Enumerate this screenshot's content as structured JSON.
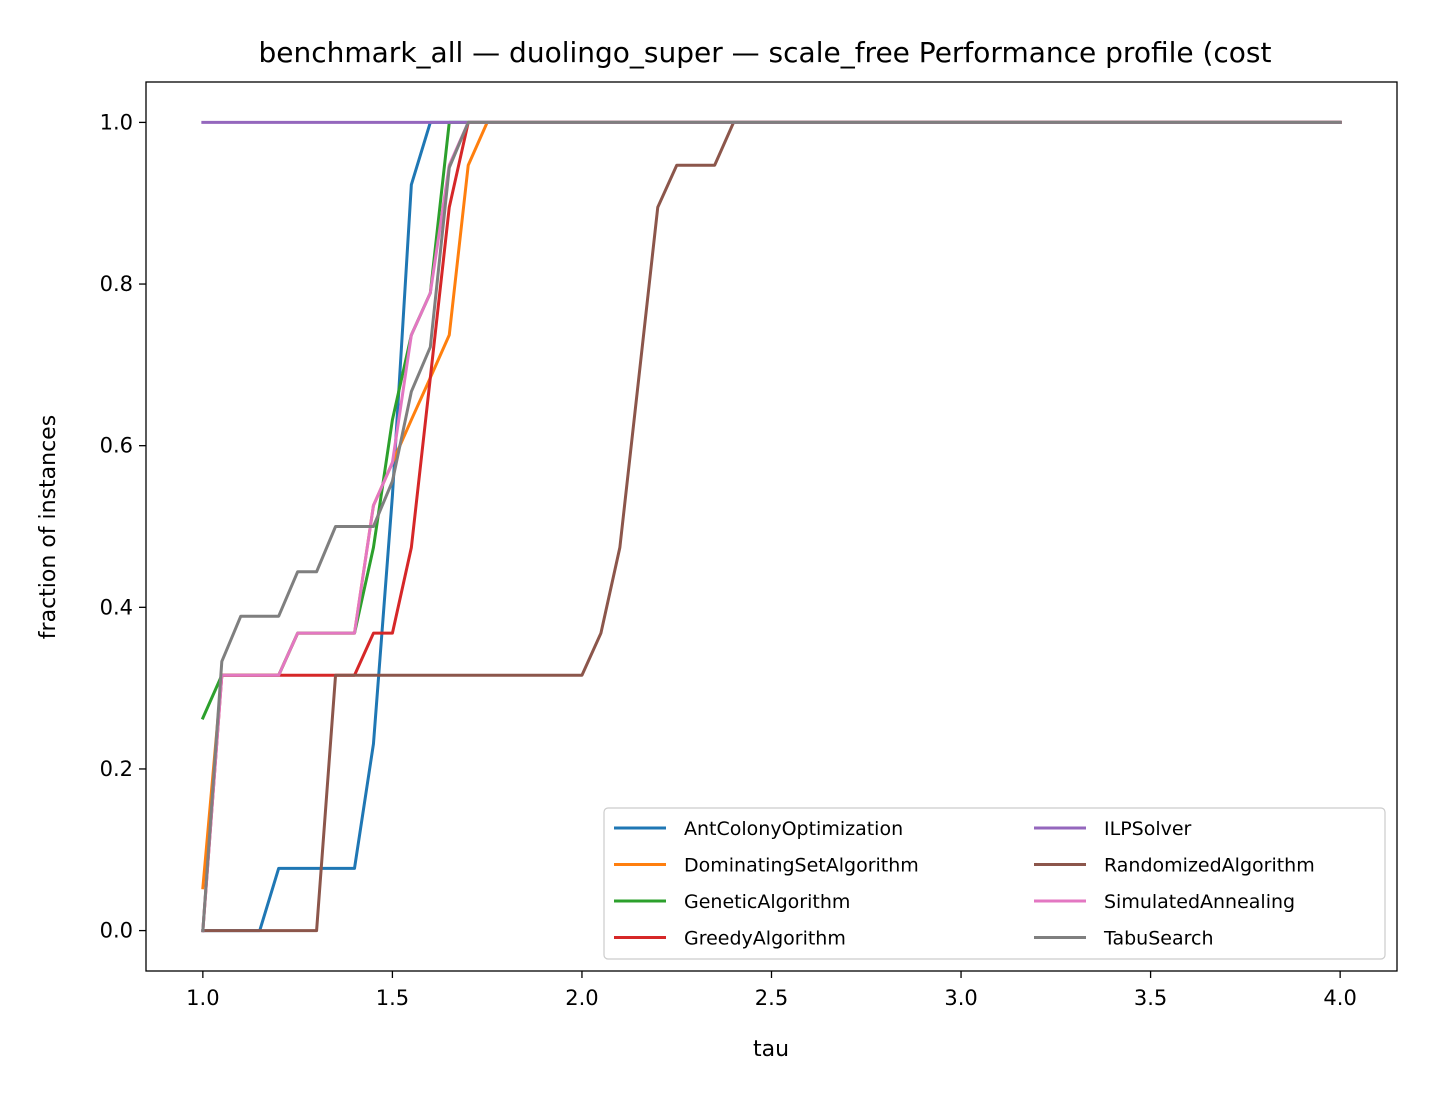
{
  "chart_data": {
    "type": "line",
    "title": "benchmark_all — duolingo_super — scale_free Performance profile (cost",
    "xlabel": "tau",
    "ylabel": "fraction of instances",
    "xlim": [
      0.85,
      4.15
    ],
    "ylim": [
      -0.05,
      1.05
    ],
    "xticks": [
      1.0,
      1.5,
      2.0,
      2.5,
      3.0,
      3.5,
      4.0
    ],
    "xtick_labels": [
      "1.0",
      "1.5",
      "2.0",
      "2.5",
      "3.0",
      "3.5",
      "4.0"
    ],
    "yticks": [
      0.0,
      0.2,
      0.4,
      0.6,
      0.8,
      1.0
    ],
    "ytick_labels": [
      "0.0",
      "0.2",
      "0.4",
      "0.6",
      "0.8",
      "1.0"
    ],
    "grid": false,
    "legend_position": "lower-right",
    "legend_columns": 2,
    "series": [
      {
        "name": "AntColonyOptimization",
        "color": "#1f77b4",
        "x": [
          1.0,
          1.05,
          1.1,
          1.15,
          1.2,
          1.25,
          1.3,
          1.35,
          1.4,
          1.45,
          1.5,
          1.55,
          1.6,
          1.65,
          4.0
        ],
        "y": [
          0.0,
          0.0,
          0.0,
          0.0,
          0.077,
          0.077,
          0.077,
          0.077,
          0.077,
          0.231,
          0.538,
          0.923,
          1.0,
          1.0,
          1.0
        ]
      },
      {
        "name": "DominatingSetAlgorithm",
        "color": "#ff7f0e",
        "x": [
          1.0,
          1.05,
          1.1,
          1.15,
          1.2,
          1.25,
          1.3,
          1.35,
          1.4,
          1.45,
          1.5,
          1.55,
          1.6,
          1.65,
          1.7,
          1.75,
          4.0
        ],
        "y": [
          0.053,
          0.316,
          0.316,
          0.316,
          0.316,
          0.368,
          0.368,
          0.368,
          0.368,
          0.526,
          0.579,
          0.632,
          0.684,
          0.737,
          0.947,
          1.0,
          1.0
        ]
      },
      {
        "name": "GeneticAlgorithm",
        "color": "#2ca02c",
        "x": [
          1.0,
          1.05,
          1.1,
          1.15,
          1.2,
          1.25,
          1.3,
          1.35,
          1.4,
          1.45,
          1.5,
          1.55,
          1.6,
          1.65,
          4.0
        ],
        "y": [
          0.263,
          0.316,
          0.316,
          0.316,
          0.316,
          0.368,
          0.368,
          0.368,
          0.368,
          0.474,
          0.632,
          0.737,
          0.789,
          1.0,
          1.0
        ]
      },
      {
        "name": "GreedyAlgorithm",
        "color": "#d62728",
        "x": [
          1.0,
          1.05,
          1.1,
          1.15,
          1.2,
          1.25,
          1.3,
          1.35,
          1.4,
          1.45,
          1.5,
          1.55,
          1.6,
          1.65,
          1.7,
          4.0
        ],
        "y": [
          0.0,
          0.316,
          0.316,
          0.316,
          0.316,
          0.316,
          0.316,
          0.316,
          0.316,
          0.368,
          0.368,
          0.474,
          0.684,
          0.895,
          1.0,
          1.0
        ]
      },
      {
        "name": "ILPSolver",
        "color": "#9467bd",
        "x": [
          1.0,
          4.0
        ],
        "y": [
          1.0,
          1.0
        ]
      },
      {
        "name": "RandomizedAlgorithm",
        "color": "#8c564b",
        "x": [
          1.0,
          1.05,
          1.1,
          1.15,
          1.2,
          1.25,
          1.3,
          1.35,
          1.4,
          1.45,
          1.5,
          1.55,
          1.6,
          1.65,
          1.7,
          1.75,
          1.8,
          1.85,
          1.9,
          1.95,
          2.0,
          2.05,
          2.1,
          2.15,
          2.2,
          2.25,
          2.3,
          2.35,
          2.4,
          4.0
        ],
        "y": [
          0.0,
          0.0,
          0.0,
          0.0,
          0.0,
          0.0,
          0.0,
          0.316,
          0.316,
          0.316,
          0.316,
          0.316,
          0.316,
          0.316,
          0.316,
          0.316,
          0.316,
          0.316,
          0.316,
          0.316,
          0.316,
          0.368,
          0.474,
          0.684,
          0.895,
          0.947,
          0.947,
          0.947,
          1.0,
          1.0
        ]
      },
      {
        "name": "SimulatedAnnealing",
        "color": "#e377c2",
        "x": [
          1.0,
          1.05,
          1.1,
          1.15,
          1.2,
          1.25,
          1.3,
          1.35,
          1.4,
          1.45,
          1.5,
          1.55,
          1.6,
          1.65,
          1.7,
          4.0
        ],
        "y": [
          0.0,
          0.316,
          0.316,
          0.316,
          0.316,
          0.368,
          0.368,
          0.368,
          0.368,
          0.526,
          0.579,
          0.737,
          0.789,
          0.947,
          1.0,
          1.0
        ]
      },
      {
        "name": "TabuSearch",
        "color": "#7f7f7f",
        "x": [
          1.0,
          1.05,
          1.1,
          1.15,
          1.2,
          1.25,
          1.3,
          1.35,
          1.4,
          1.45,
          1.5,
          1.55,
          1.6,
          1.65,
          1.7,
          4.0
        ],
        "y": [
          0.0,
          0.333,
          0.389,
          0.389,
          0.389,
          0.444,
          0.444,
          0.5,
          0.5,
          0.5,
          0.556,
          0.667,
          0.722,
          0.944,
          1.0,
          1.0
        ]
      }
    ]
  }
}
